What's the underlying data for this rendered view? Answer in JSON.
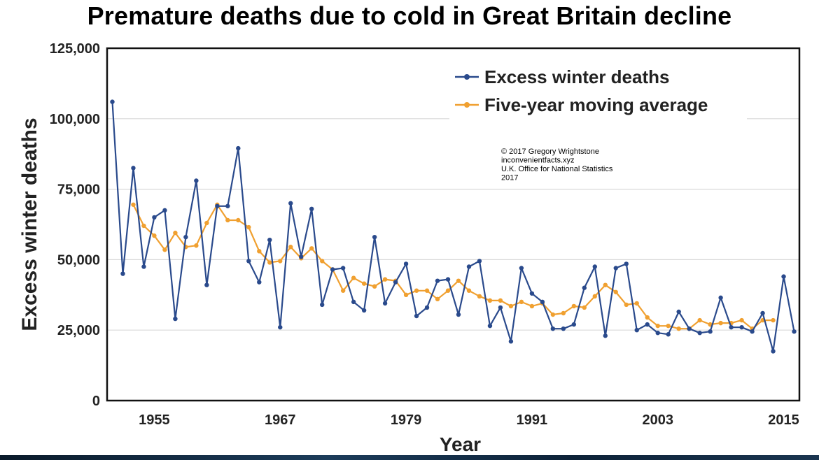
{
  "chart_data": {
    "type": "line",
    "title": "Premature deaths due to cold in Great Britain decline",
    "xlabel": "Year",
    "ylabel": "Excess winter deaths",
    "xlim": [
      1950.5,
      2016.5
    ],
    "ylim": [
      0,
      125000
    ],
    "x_ticks": [
      1955,
      1967,
      1979,
      1991,
      2003,
      2015
    ],
    "x_tick_labels": [
      "1955",
      "1967",
      "1979",
      "1991",
      "2003",
      "2015"
    ],
    "y_ticks": [
      0,
      25000,
      50000,
      75000,
      100000,
      125000
    ],
    "y_tick_labels": [
      "0",
      "25,000",
      "50,000",
      "75,000",
      "100,000",
      "125,000"
    ],
    "grid": "horizontal",
    "legend_position": "top-right",
    "x": [
      1951,
      1952,
      1953,
      1954,
      1955,
      1956,
      1957,
      1958,
      1959,
      1960,
      1961,
      1962,
      1963,
      1964,
      1965,
      1966,
      1967,
      1968,
      1969,
      1970,
      1971,
      1972,
      1973,
      1974,
      1975,
      1976,
      1977,
      1978,
      1979,
      1980,
      1981,
      1982,
      1983,
      1984,
      1985,
      1986,
      1987,
      1988,
      1989,
      1990,
      1991,
      1992,
      1993,
      1994,
      1995,
      1996,
      1997,
      1998,
      1999,
      2000,
      2001,
      2002,
      2003,
      2004,
      2005,
      2006,
      2007,
      2008,
      2009,
      2010,
      2011,
      2012,
      2013,
      2014,
      2015,
      2016
    ],
    "series": [
      {
        "name": "Excess winter deaths",
        "color": "#2a4a8c",
        "values": [
          106000,
          45000,
          82500,
          47500,
          65000,
          67500,
          29000,
          58000,
          78000,
          41000,
          69000,
          69000,
          89500,
          49500,
          42000,
          57000,
          26000,
          70000,
          51000,
          68000,
          34000,
          46500,
          47000,
          35000,
          32000,
          58000,
          34500,
          42000,
          48500,
          30000,
          33000,
          42500,
          43000,
          30500,
          47500,
          49500,
          26500,
          33000,
          21000,
          47000,
          38000,
          35000,
          25500,
          25500,
          27000,
          40000,
          47500,
          23000,
          47000,
          48500,
          25000,
          27000,
          24000,
          23500,
          31500,
          25500,
          24000,
          24500,
          36500,
          26000,
          26000,
          24500,
          31000,
          17500,
          44000,
          24500
        ]
      },
      {
        "name": "Five-year moving average",
        "color": "#f0a030",
        "values": [
          null,
          null,
          69500,
          62000,
          58500,
          53500,
          59500,
          54500,
          55000,
          63000,
          69500,
          64000,
          64000,
          61500,
          53000,
          49000,
          49500,
          54500,
          50500,
          54000,
          49500,
          46500,
          39000,
          43500,
          41500,
          40500,
          43000,
          42500,
          37500,
          39000,
          39000,
          36000,
          39000,
          42500,
          39000,
          37000,
          35500,
          35500,
          33500,
          35000,
          33500,
          34500,
          30500,
          31000,
          33500,
          33000,
          37000,
          41000,
          38500,
          34000,
          34500,
          29500,
          26500,
          26500,
          25500,
          25500,
          28500,
          27000,
          27500,
          27500,
          28500,
          25500,
          28500,
          28500,
          null,
          null
        ]
      }
    ],
    "annotation": [
      "© 2017 Gregory Wrightstone",
      "inconvenientfacts.xyz",
      "U.K. Office for National Statistics",
      "2017"
    ]
  }
}
